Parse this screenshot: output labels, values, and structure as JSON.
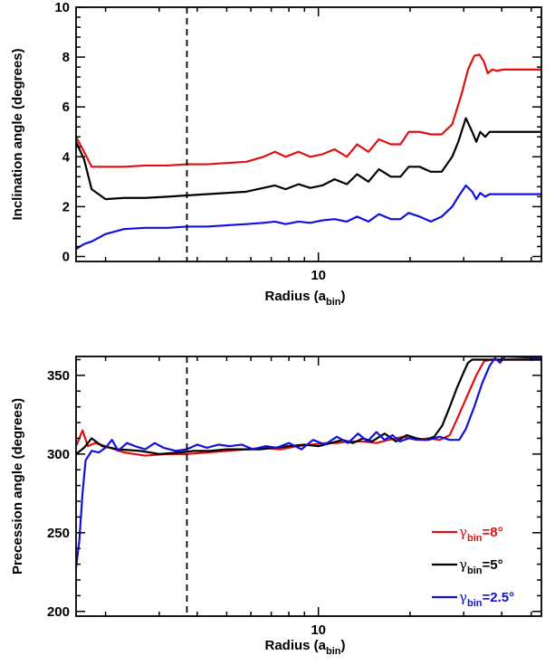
{
  "chart_data": [
    {
      "type": "line",
      "xscale": "log",
      "xlim": [
        1.6,
        54
      ],
      "ylim": [
        -0.2,
        10
      ],
      "xticks": [
        10
      ],
      "yticks": [
        0,
        2,
        4,
        6,
        8,
        10
      ],
      "ylabel": "Inclination angle (degrees)",
      "xlabel": {
        "main": "Radius (a",
        "sub": "bin",
        "close": ")"
      },
      "vline_x": 3.7,
      "series": [
        {
          "color": "#e01010",
          "x": [
            1.6,
            1.7,
            1.8,
            2.0,
            2.3,
            2.7,
            3.2,
            3.7,
            4.3,
            5.0,
            5.8,
            6.6,
            7.2,
            7.8,
            8.6,
            9.4,
            10.3,
            11.3,
            12.4,
            13.4,
            14.6,
            15.8,
            17.3,
            18.6,
            19.8,
            21.5,
            23.4,
            25.4,
            27.5,
            29.5,
            31.0,
            32.5,
            33.8,
            35.0,
            36.0,
            37.2,
            38.5,
            40.5,
            45.0,
            54.0
          ],
          "y": [
            4.8,
            4.2,
            3.6,
            3.6,
            3.6,
            3.65,
            3.65,
            3.7,
            3.7,
            3.75,
            3.8,
            4.0,
            4.2,
            4.0,
            4.2,
            4.0,
            4.1,
            4.3,
            4.0,
            4.5,
            4.2,
            4.7,
            4.5,
            4.5,
            5.0,
            5.0,
            4.9,
            4.9,
            5.3,
            6.5,
            7.5,
            8.05,
            8.1,
            7.8,
            7.35,
            7.5,
            7.45,
            7.5,
            7.5,
            7.5
          ]
        },
        {
          "color": "#000000",
          "x": [
            1.6,
            1.7,
            1.8,
            2.0,
            2.3,
            2.7,
            3.2,
            3.7,
            4.3,
            5.0,
            5.8,
            6.6,
            7.2,
            7.8,
            8.6,
            9.4,
            10.3,
            11.3,
            12.4,
            13.4,
            14.6,
            15.8,
            17.3,
            18.6,
            19.8,
            21.5,
            23.4,
            25.4,
            27.5,
            28.8,
            30.5,
            32.0,
            33.0,
            34.0,
            35.3,
            36.5,
            38.0,
            40.0,
            45.0,
            54.0
          ],
          "y": [
            4.6,
            3.9,
            2.7,
            2.3,
            2.35,
            2.35,
            2.4,
            2.45,
            2.5,
            2.55,
            2.6,
            2.75,
            2.85,
            2.7,
            2.9,
            2.75,
            2.85,
            3.1,
            2.9,
            3.3,
            3.0,
            3.5,
            3.2,
            3.2,
            3.6,
            3.6,
            3.4,
            3.4,
            4.0,
            4.6,
            5.55,
            5.0,
            4.6,
            5.0,
            4.8,
            5.0,
            5.0,
            5.0,
            5.0,
            5.0
          ]
        },
        {
          "color": "#1010e0",
          "x": [
            1.6,
            1.7,
            1.8,
            2.0,
            2.3,
            2.7,
            3.2,
            3.7,
            4.3,
            5.0,
            5.8,
            6.6,
            7.2,
            7.8,
            8.6,
            9.4,
            10.3,
            11.3,
            12.4,
            13.4,
            14.6,
            15.8,
            17.3,
            18.6,
            19.8,
            21.5,
            23.4,
            25.4,
            27.5,
            28.8,
            30.5,
            32.0,
            33.0,
            34.0,
            35.3,
            36.5,
            38.0,
            40.0,
            45.0,
            54.0
          ],
          "y": [
            0.3,
            0.5,
            0.6,
            0.9,
            1.1,
            1.15,
            1.15,
            1.2,
            1.2,
            1.25,
            1.3,
            1.35,
            1.4,
            1.3,
            1.4,
            1.35,
            1.45,
            1.5,
            1.4,
            1.6,
            1.4,
            1.7,
            1.5,
            1.5,
            1.75,
            1.6,
            1.4,
            1.6,
            2.0,
            2.4,
            2.85,
            2.6,
            2.3,
            2.55,
            2.4,
            2.5,
            2.5,
            2.5,
            2.5,
            2.5
          ]
        }
      ]
    },
    {
      "type": "line",
      "xscale": "log",
      "xlim": [
        1.6,
        54
      ],
      "ylim": [
        197,
        362
      ],
      "xticks": [
        10
      ],
      "yticks": [
        200,
        250,
        300,
        350
      ],
      "ylabel": "Precession angle (degrees)",
      "xlabel": {
        "main": "Radius (a",
        "sub": "bin",
        "close": ")"
      },
      "vline_x": 3.7,
      "legend_position": "bottom-right",
      "series": [
        {
          "color": "#e01010",
          "legend": {
            "symbol": "γ",
            "sub": "bin",
            "value": "=8°"
          },
          "x": [
            1.6,
            1.68,
            1.75,
            1.85,
            2.0,
            2.3,
            2.7,
            3.2,
            3.7,
            4.3,
            5.0,
            5.8,
            6.6,
            7.5,
            8.5,
            9.5,
            10.5,
            11.5,
            12.5,
            14.0,
            15.5,
            17.0,
            19.0,
            21.0,
            23.0,
            25.0,
            27.0,
            28.5,
            30.5,
            33.0,
            35.0,
            37.0,
            54.0
          ],
          "y": [
            305,
            315,
            305,
            307,
            305,
            301,
            299,
            300,
            300,
            301,
            302,
            303,
            304,
            303,
            305,
            306,
            307,
            307,
            308,
            308,
            307,
            309,
            311,
            309,
            310,
            309,
            312,
            322,
            335,
            350,
            359,
            360,
            360
          ]
        },
        {
          "color": "#000000",
          "legend": {
            "symbol": "γ",
            "sub": "bin",
            "value": "=5°"
          },
          "x": [
            1.6,
            1.7,
            1.8,
            1.95,
            2.2,
            2.6,
            3.0,
            3.5,
            3.9,
            4.4,
            5.0,
            5.7,
            6.4,
            7.2,
            8.0,
            9.0,
            10.0,
            11.0,
            12.0,
            13.0,
            14.0,
            15.0,
            16.5,
            18.0,
            19.5,
            21.0,
            22.5,
            24.0,
            25.5,
            27.0,
            28.5,
            30.0,
            31.0,
            32.0,
            54.0
          ],
          "y": [
            300,
            304,
            310,
            305,
            303,
            302,
            300,
            301,
            302,
            302,
            303,
            303,
            303,
            304,
            305,
            306,
            305,
            307,
            309,
            307,
            310,
            308,
            313,
            308,
            312,
            310,
            309,
            311,
            318,
            330,
            342,
            352,
            358,
            360,
            360
          ]
        },
        {
          "color": "#1010e0",
          "legend": {
            "symbol": "γ",
            "sub": "bin",
            "value": "=2.5°"
          },
          "x": [
            1.6,
            1.64,
            1.68,
            1.72,
            1.8,
            1.9,
            2.0,
            2.1,
            2.2,
            2.35,
            2.5,
            2.7,
            2.9,
            3.1,
            3.4,
            3.7,
            4.0,
            4.3,
            4.7,
            5.1,
            5.6,
            6.1,
            6.7,
            7.3,
            8.0,
            8.8,
            9.6,
            10.5,
            11.5,
            12.5,
            13.5,
            14.5,
            15.5,
            16.5,
            17.5,
            18.5,
            19.8,
            21.5,
            23.0,
            25.0,
            27.0,
            29.0,
            30.5,
            32.5,
            34.5,
            36.5,
            38.0,
            39.5,
            41.0,
            54.0
          ],
          "y": [
            228,
            245,
            275,
            296,
            302,
            301,
            304,
            309,
            302,
            307,
            305,
            303,
            307,
            304,
            302,
            303,
            306,
            304,
            306,
            305,
            306,
            303,
            305,
            304,
            307,
            303,
            309,
            306,
            311,
            307,
            313,
            308,
            314,
            309,
            312,
            308,
            310,
            309,
            309,
            311,
            309,
            309,
            316,
            330,
            345,
            356,
            361,
            358,
            362,
            361
          ]
        }
      ]
    }
  ]
}
